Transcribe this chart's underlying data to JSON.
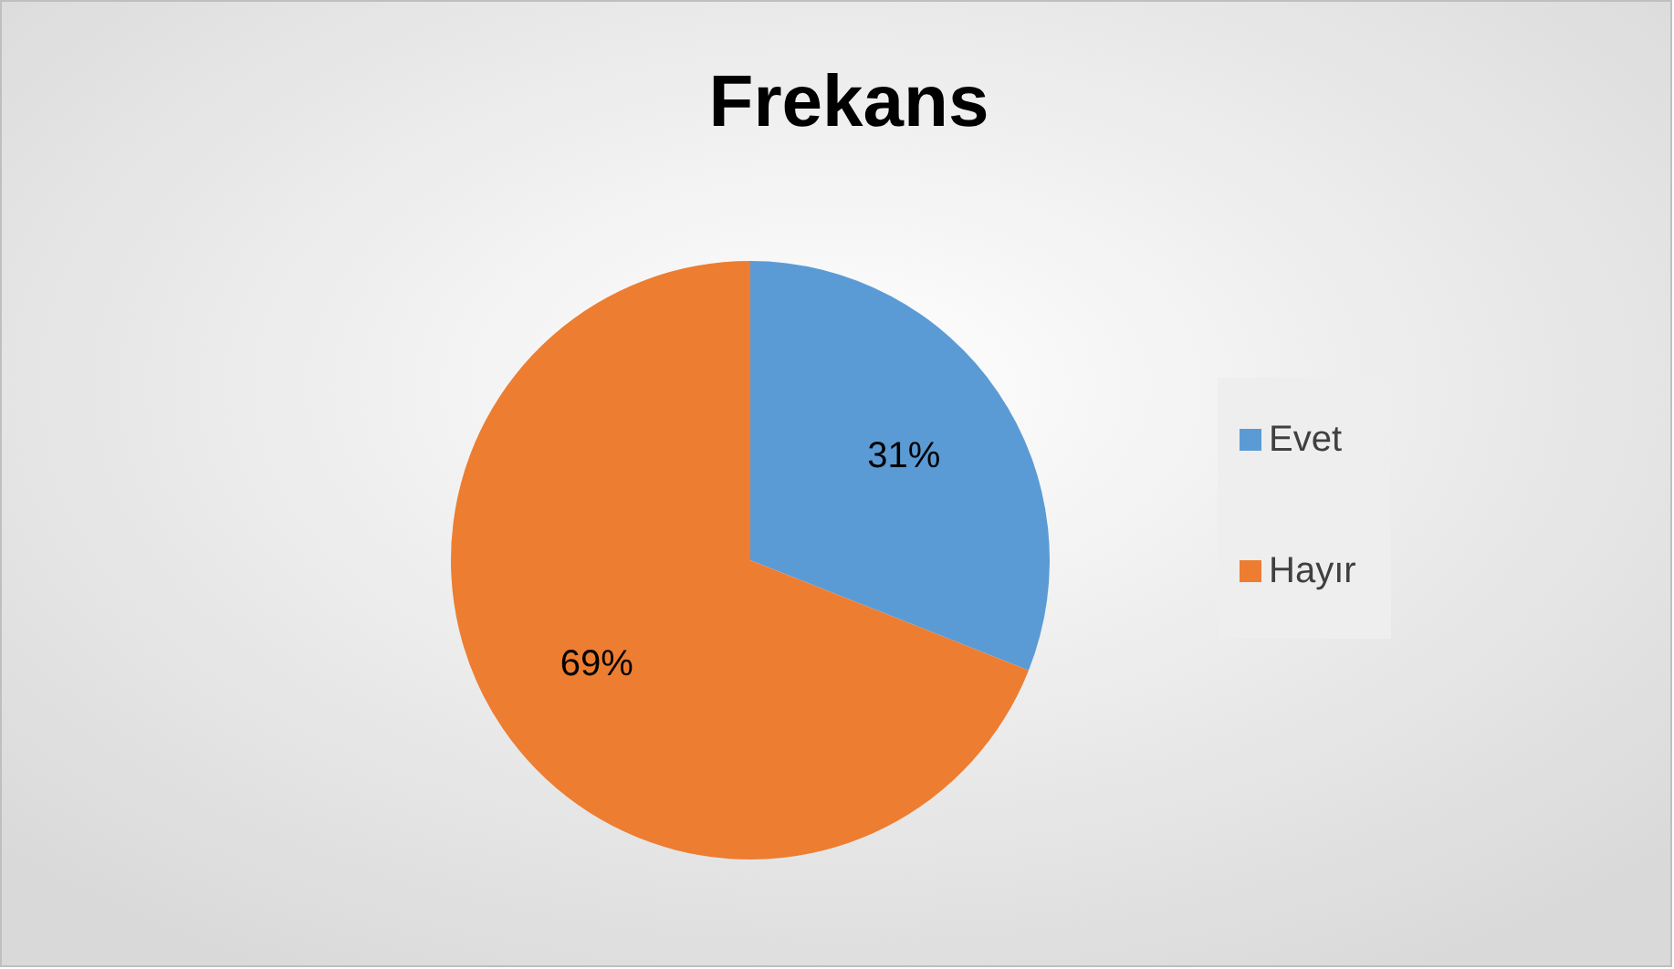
{
  "chart_data": {
    "type": "pie",
    "title": "Frekans",
    "categories": [
      "Evet",
      "Hayır"
    ],
    "values": [
      31,
      69
    ],
    "colors": [
      "#5b9bd5",
      "#ed7d31"
    ],
    "value_labels": [
      "31%",
      "69%"
    ],
    "legend": "right"
  }
}
